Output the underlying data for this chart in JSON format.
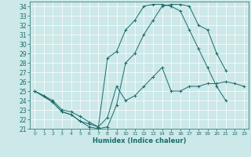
{
  "xlabel": "Humidex (Indice chaleur)",
  "background_color": "#cce8e8",
  "grid_color": "#ffffff",
  "line_color": "#1a6b6b",
  "xlim": [
    -0.5,
    23.5
  ],
  "ylim": [
    21,
    34.5
  ],
  "xticks": [
    0,
    1,
    2,
    3,
    4,
    5,
    6,
    7,
    8,
    9,
    10,
    11,
    12,
    13,
    14,
    15,
    16,
    17,
    18,
    19,
    20,
    21,
    22,
    23
  ],
  "yticks": [
    21,
    22,
    23,
    24,
    25,
    26,
    27,
    28,
    29,
    30,
    31,
    32,
    33,
    34
  ],
  "line1_x": [
    0,
    1,
    2,
    3,
    4,
    5,
    6,
    7,
    8,
    9,
    10,
    11,
    12,
    13,
    14,
    15,
    16,
    17,
    18,
    19,
    20,
    21,
    22,
    23
  ],
  "line1_y": [
    25.0,
    24.5,
    24.0,
    23.0,
    22.8,
    22.3,
    21.7,
    21.2,
    22.2,
    25.5,
    24.0,
    24.5,
    25.5,
    26.5,
    27.5,
    25.0,
    25.0,
    25.5,
    25.5,
    25.8,
    25.8,
    26.0,
    25.8,
    25.5
  ],
  "line2_x": [
    0,
    2,
    3,
    4,
    5,
    6,
    7,
    8,
    9,
    10,
    11,
    12,
    13,
    14,
    15,
    16,
    17,
    18,
    19,
    20,
    21,
    22,
    23
  ],
  "line2_y": [
    25.0,
    23.8,
    22.8,
    22.5,
    21.8,
    21.5,
    21.2,
    28.5,
    29.2,
    31.5,
    32.5,
    34.0,
    34.2,
    34.2,
    34.0,
    33.5,
    31.5,
    29.5,
    27.5,
    25.5,
    24.0,
    null,
    null
  ],
  "line3_x": [
    0,
    1,
    2,
    3,
    4,
    5,
    6,
    7,
    8,
    9,
    10,
    11,
    12,
    13,
    14,
    15,
    16,
    17,
    18,
    19,
    20,
    21,
    22,
    23
  ],
  "line3_y": [
    25.0,
    24.5,
    23.8,
    22.8,
    22.5,
    21.8,
    21.2,
    21.0,
    21.2,
    23.5,
    28.0,
    29.0,
    31.0,
    32.5,
    34.0,
    34.2,
    34.2,
    34.0,
    32.0,
    31.5,
    29.0,
    27.2,
    null,
    null
  ]
}
